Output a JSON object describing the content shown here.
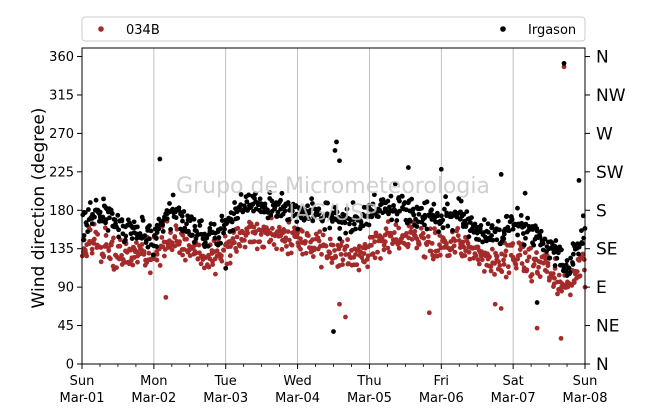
{
  "chart_data": {
    "type": "scatter",
    "title": "",
    "xlabel": "",
    "ylabel": "Wind direction (degree)",
    "ylim": [
      0,
      370
    ],
    "xlim": [
      "2020-03-01",
      "2020-03-08"
    ],
    "yticks": [
      0,
      45,
      90,
      135,
      180,
      225,
      270,
      315,
      360
    ],
    "x_ticks": [
      {
        "date": "2020-03-01",
        "day": "Sun",
        "date_label": "Mar-01"
      },
      {
        "date": "2020-03-02",
        "day": "Mon",
        "date_label": "Mar-02"
      },
      {
        "date": "2020-03-03",
        "day": "Tue",
        "date_label": "Mar-03"
      },
      {
        "date": "2020-03-04",
        "day": "Wed",
        "date_label": "Mar-04"
      },
      {
        "date": "2020-03-05",
        "day": "Thu",
        "date_label": "Mar-05"
      },
      {
        "date": "2020-03-06",
        "day": "Fri",
        "date_label": "Mar-06"
      },
      {
        "date": "2020-03-07",
        "day": "Sat",
        "date_label": "Mar-07"
      },
      {
        "date": "2020-03-08",
        "day": "Sun",
        "date_label": "Mar-08"
      }
    ],
    "right_axis_labels": [
      "N",
      "NE",
      "E",
      "SE",
      "S",
      "SW",
      "W",
      "NW",
      "N"
    ],
    "grid": "vertical lines at day ticks",
    "legend": {
      "placement": "top, above plot",
      "entries": [
        "034B",
        "Irgason"
      ]
    },
    "watermark": [
      "Grupo de Micrometeorologia",
      "IAG/USP"
    ],
    "series": [
      {
        "name": "034B",
        "color": "#a52a2a",
        "anchors": [
          [
            "2020-03-01 00:00",
            140
          ],
          [
            "2020-03-01 06:00",
            138
          ],
          [
            "2020-03-01 12:00",
            128
          ],
          [
            "2020-03-01 18:00",
            130
          ],
          [
            "2020-03-02 00:00",
            125
          ],
          [
            "2020-03-02 06:00",
            148
          ],
          [
            "2020-03-02 12:00",
            135
          ],
          [
            "2020-03-02 18:00",
            125
          ],
          [
            "2020-03-03 00:00",
            130
          ],
          [
            "2020-03-03 06:00",
            150
          ],
          [
            "2020-03-03 12:00",
            152
          ],
          [
            "2020-03-03 18:00",
            150
          ],
          [
            "2020-03-04 00:00",
            148
          ],
          [
            "2020-03-04 06:00",
            140
          ],
          [
            "2020-03-04 12:00",
            130
          ],
          [
            "2020-03-04 18:00",
            125
          ],
          [
            "2020-03-05 00:00",
            135
          ],
          [
            "2020-03-05 06:00",
            145
          ],
          [
            "2020-03-05 12:00",
            150
          ],
          [
            "2020-03-05 18:00",
            140
          ],
          [
            "2020-03-06 00:00",
            135
          ],
          [
            "2020-03-06 06:00",
            140
          ],
          [
            "2020-03-06 12:00",
            130
          ],
          [
            "2020-03-06 18:00",
            115
          ],
          [
            "2020-03-07 00:00",
            130
          ],
          [
            "2020-03-07 06:00",
            120
          ],
          [
            "2020-03-07 12:00",
            115
          ],
          [
            "2020-03-07 18:00",
            85
          ],
          [
            "2020-03-08 00:00",
            125
          ]
        ],
        "outliers": [
          [
            "2020-03-02 04:00",
            78
          ],
          [
            "2020-03-04 14:00",
            70
          ],
          [
            "2020-03-04 16:00",
            55
          ],
          [
            "2020-03-05 20:00",
            60
          ],
          [
            "2020-03-06 18:00",
            70
          ],
          [
            "2020-03-06 20:00",
            65
          ],
          [
            "2020-03-07 08:00",
            42
          ],
          [
            "2020-03-07 16:00",
            30
          ],
          [
            "2020-03-07 17:00",
            348
          ],
          [
            "2020-03-08 00:00",
            90
          ]
        ]
      },
      {
        "name": "Irgason",
        "color": "#000000",
        "anchors": [
          [
            "2020-03-01 00:00",
            168
          ],
          [
            "2020-03-01 06:00",
            180
          ],
          [
            "2020-03-01 12:00",
            165
          ],
          [
            "2020-03-01 18:00",
            155
          ],
          [
            "2020-03-02 00:00",
            150
          ],
          [
            "2020-03-02 06:00",
            182
          ],
          [
            "2020-03-02 12:00",
            160
          ],
          [
            "2020-03-02 18:00",
            150
          ],
          [
            "2020-03-03 00:00",
            160
          ],
          [
            "2020-03-03 06:00",
            188
          ],
          [
            "2020-03-03 12:00",
            185
          ],
          [
            "2020-03-03 18:00",
            180
          ],
          [
            "2020-03-04 00:00",
            178
          ],
          [
            "2020-03-04 06:00",
            175
          ],
          [
            "2020-03-04 12:00",
            170
          ],
          [
            "2020-03-04 18:00",
            165
          ],
          [
            "2020-03-05 00:00",
            175
          ],
          [
            "2020-03-05 06:00",
            190
          ],
          [
            "2020-03-05 12:00",
            180
          ],
          [
            "2020-03-05 18:00",
            175
          ],
          [
            "2020-03-06 00:00",
            170
          ],
          [
            "2020-03-06 06:00",
            178
          ],
          [
            "2020-03-06 12:00",
            155
          ],
          [
            "2020-03-06 18:00",
            150
          ],
          [
            "2020-03-07 00:00",
            165
          ],
          [
            "2020-03-07 06:00",
            155
          ],
          [
            "2020-03-07 12:00",
            140
          ],
          [
            "2020-03-07 18:00",
            110
          ],
          [
            "2020-03-08 00:00",
            155
          ]
        ],
        "outliers": [
          [
            "2020-03-02 02:00",
            240
          ],
          [
            "2020-03-04 12:00",
            38
          ],
          [
            "2020-03-04 13:00",
            260
          ],
          [
            "2020-03-04 12:30",
            250
          ],
          [
            "2020-03-04 14:00",
            238
          ],
          [
            "2020-03-05 13:00",
            230
          ],
          [
            "2020-03-06 00:00",
            228
          ],
          [
            "2020-03-06 20:00",
            222
          ],
          [
            "2020-03-07 08:00",
            72
          ],
          [
            "2020-03-07 17:00",
            352
          ],
          [
            "2020-03-07 22:00",
            215
          ],
          [
            "2020-03-03 00:00",
            112
          ],
          [
            "2020-03-07 04:00",
            200
          ]
        ]
      }
    ]
  }
}
